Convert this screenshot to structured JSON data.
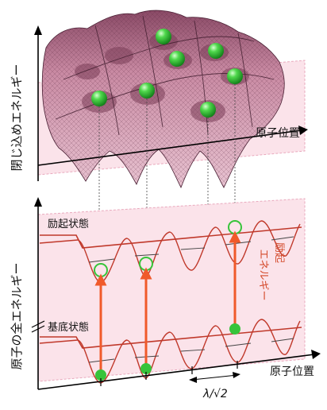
{
  "upper_panel": {
    "y_axis_label": "閉じ込めエネルギー",
    "x_axis_label": "原子位置"
  },
  "lower_panel": {
    "y_axis_label": "原子の全エネルギー",
    "x_axis_label": "原子位置",
    "excited_state_label": "励起状態",
    "ground_state_label": "基底状態",
    "excitation_energy_label_line1": "励起",
    "excitation_energy_label_line2": "エネルギー",
    "period_label": "λ/√2"
  },
  "colors": {
    "surface": "#c98aa3",
    "surface_shadow": "#6e3b52",
    "band_fill": "#fbe3ea",
    "curve": "#c0392b",
    "arrow": "#f05a2a",
    "atom": "#36c43a",
    "axis": "#000000"
  },
  "icons": [
    "atom-sphere",
    "ground-state-dot",
    "excited-state-ring",
    "excitation-arrow"
  ]
}
